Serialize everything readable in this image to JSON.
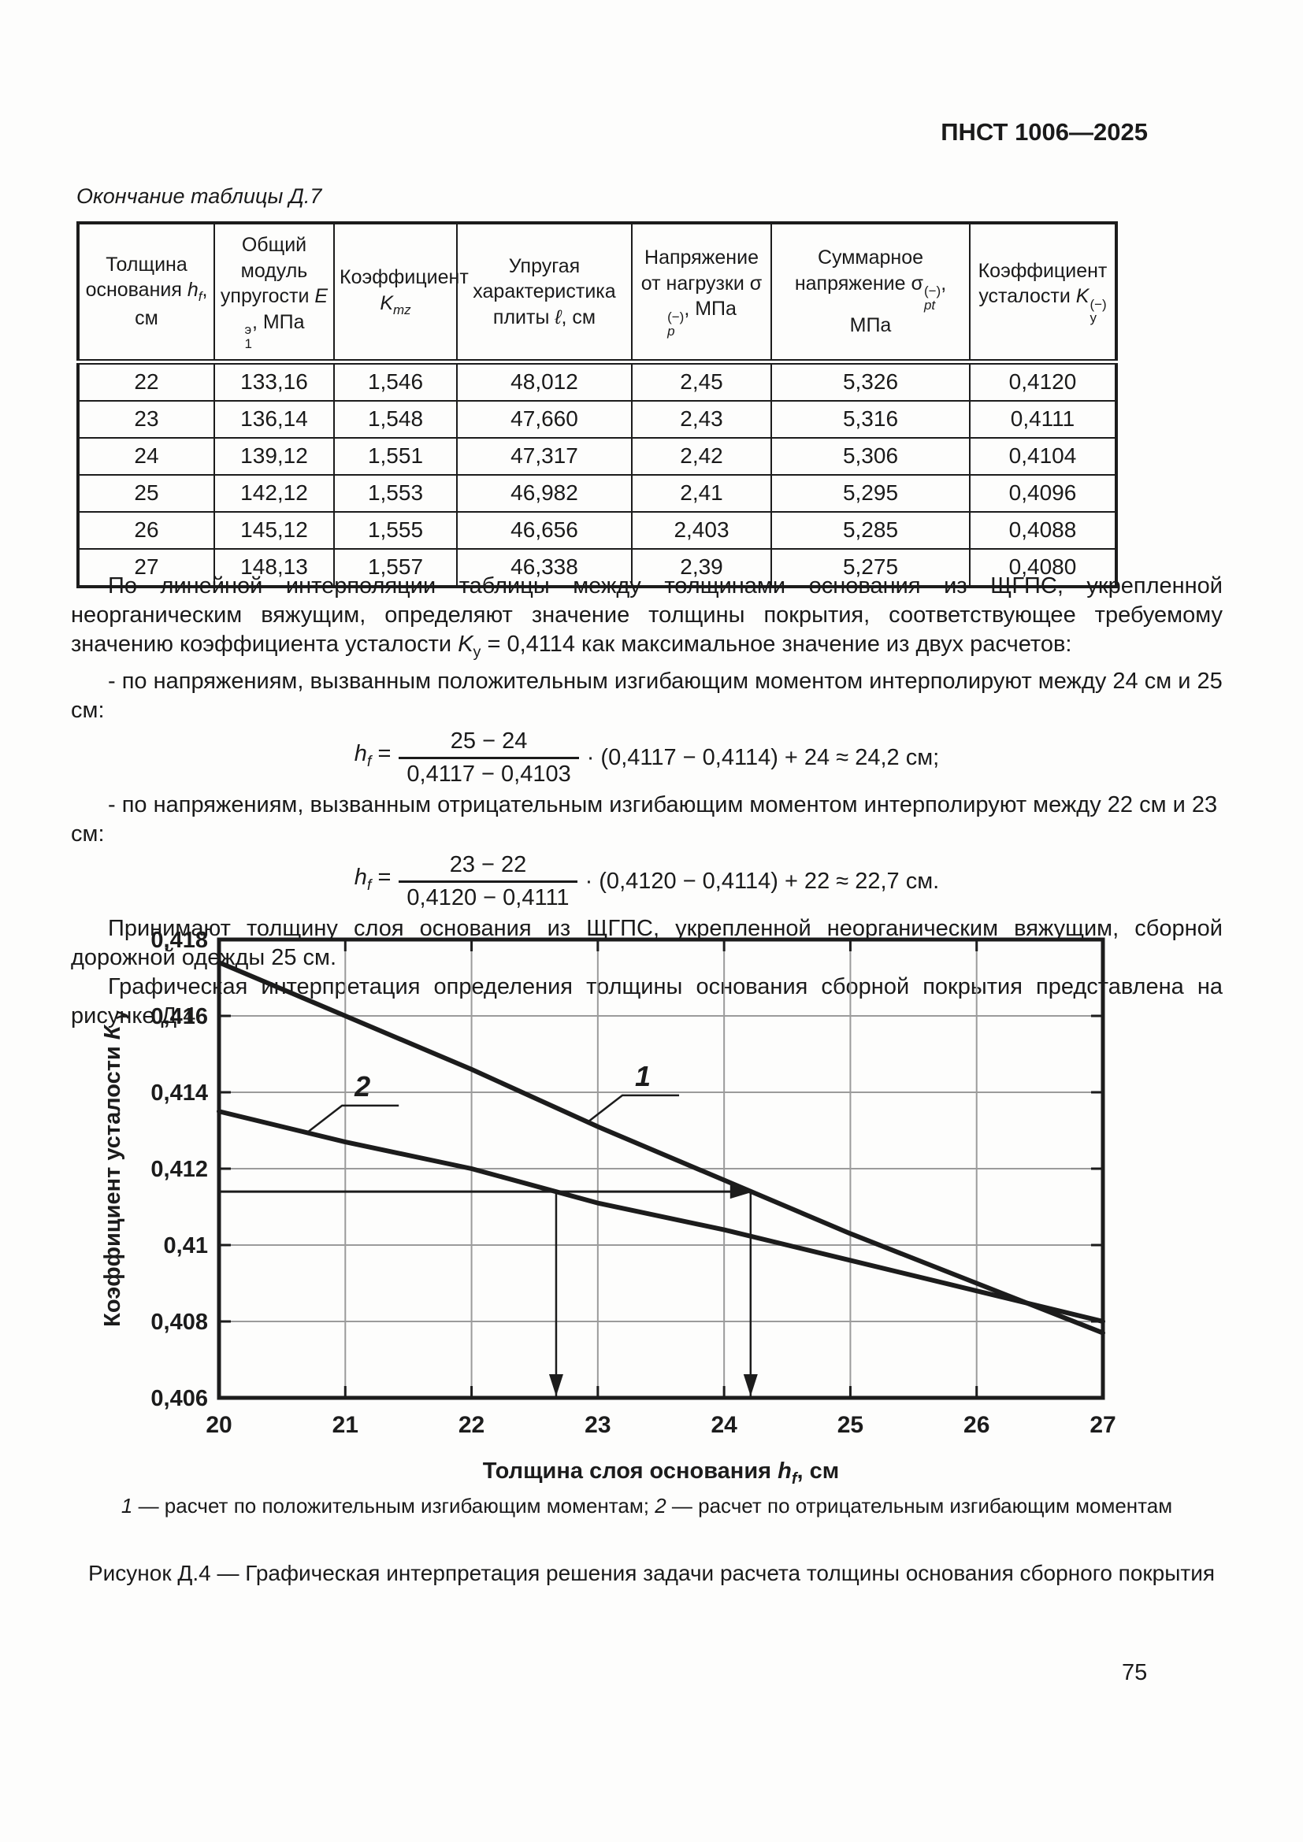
{
  "page": {
    "header": "ПНСТ 1006—2025",
    "table_caption": "Окончание таблицы Д.7",
    "figure_caption": "Рисунок Д.4 — Графическая интерпретация решения задачи расчета толщины основания сборного покрытия",
    "page_number": "75"
  },
  "table": {
    "headers": {
      "h1": {
        "pre": "Толщина основания ",
        "var": "h",
        "sub": "f",
        "post": ", см"
      },
      "h2": {
        "pre": "Общий модуль упругости ",
        "var": "E",
        "sup": "э",
        "sub": "1",
        "post": ", МПа"
      },
      "h3": {
        "pre": "Коэффициент ",
        "var": "K",
        "sub": "mz"
      },
      "h4": {
        "pre": "Упругая характеристика плиты ",
        "var": "ℓ",
        "post": ", см"
      },
      "h5": {
        "pre": "Напряжение от нагрузки ",
        "sym": "σ",
        "sup": "(−)",
        "sub": "p",
        "post": ", МПа"
      },
      "h6": {
        "pre": "Суммарное напряжение ",
        "sym": "σ",
        "sup": "(−)",
        "sub": "pt",
        "post": ", МПа"
      },
      "h7": {
        "pre": "Коэффициент усталости ",
        "var": "K",
        "sup": "(−)",
        "sub": "у"
      }
    },
    "rows": [
      [
        "22",
        "133,16",
        "1,546",
        "48,012",
        "2,45",
        "5,326",
        "0,4120"
      ],
      [
        "23",
        "136,14",
        "1,548",
        "47,660",
        "2,43",
        "5,316",
        "0,4111"
      ],
      [
        "24",
        "139,12",
        "1,551",
        "47,317",
        "2,42",
        "5,306",
        "0,4104"
      ],
      [
        "25",
        "142,12",
        "1,553",
        "46,982",
        "2,41",
        "5,295",
        "0,4096"
      ],
      [
        "26",
        "145,12",
        "1,555",
        "46,656",
        "2,403",
        "5,285",
        "0,4088"
      ],
      [
        "27",
        "148,13",
        "1,557",
        "46,338",
        "2,39",
        "5,275",
        "0,4080"
      ]
    ]
  },
  "text": {
    "p1a": "По линейной интерполяции таблицы между толщинами основания из ЩГПС, укрепленной неорганическим вяжущим, определяют значение толщины покрытия, соответствующее требуемому значению коэффициента усталости ",
    "p1_var": "K",
    "p1_sub": "у",
    "p1b": " = 0,4114 как максимальное значение из двух расчетов:",
    "b1": "- по напряжениям, вызванным положительным изгибающим моментом интерполируют между 24 см и 25 см:",
    "b2": "- по напряжениям, вызванным отрицательным изгибающим моментом интерполируют между 22 см и 23 см:",
    "p2": "Принимают толщину слоя основания из ЩГПС, укрепленной неорганическим вяжущим, сборной дорожной одежды 25 см.",
    "p3": "Графическая интерпретация определения толщины основания сборной покрытия представлена на рисунке Д.4."
  },
  "formulas": [
    {
      "lhs_var": "h",
      "lhs_sub": "f",
      "eq": "=",
      "num": "25 − 24",
      "den": "0,4117 − 0,4103",
      "tail": "· (0,4117 − 0,4114) + 24 ≈ 24,2 см;"
    },
    {
      "lhs_var": "h",
      "lhs_sub": "f",
      "eq": "=",
      "num": "23 − 22",
      "den": "0,4120 − 0,4111",
      "tail": "· (0,4120 − 0,4114) + 22 ≈ 22,7 см."
    }
  ],
  "legend": {
    "n1": "1",
    "t1": " — расчет по положительным изгибающим моментам; ",
    "n2": "2",
    "t2": " — расчет по отрицательным изгибающим моментам"
  },
  "chart_data": {
    "type": "line",
    "x": [
      20,
      21,
      22,
      23,
      24,
      25,
      26,
      27
    ],
    "series": [
      {
        "name": "1",
        "legend": "расчет по положительным изгибающим моментам",
        "values": [
          0.4174,
          0.416,
          0.4146,
          0.4131,
          0.4117,
          0.4103,
          0.409,
          0.4077
        ]
      },
      {
        "name": "2",
        "legend": "расчет по отрицательным изгибающим моментам",
        "values": [
          0.4135,
          0.4127,
          0.412,
          0.4111,
          0.4104,
          0.4096,
          0.4088,
          0.408
        ]
      }
    ],
    "xlabel": {
      "pre": "Толщина слоя основания ",
      "var": "h",
      "sub": "f",
      "post": ", см"
    },
    "ylabel": {
      "pre": "Коэффициент усталости ",
      "var": "К",
      "sub": "у"
    },
    "xlim": [
      20,
      27
    ],
    "ylim": [
      0.406,
      0.418
    ],
    "xticks": [
      20,
      21,
      22,
      23,
      24,
      25,
      26,
      27
    ],
    "xtick_labels": [
      "20",
      "21",
      "22",
      "23",
      "24",
      "25",
      "26",
      "27"
    ],
    "yticks": [
      0.406,
      0.408,
      0.41,
      0.412,
      0.414,
      0.416,
      0.418
    ],
    "ytick_labels": [
      "0,406",
      "0,408",
      "0,41",
      "0,412",
      "0,414",
      "0,416",
      "0,418"
    ],
    "grid": true,
    "guides": {
      "ky_required": 0.4114,
      "x_solutions": [
        22.67,
        24.21
      ]
    },
    "annotations": [
      {
        "text": "1",
        "attach_x": 22.92,
        "attach_y": 0.41322
      },
      {
        "text": "2",
        "attach_x": 20.7,
        "attach_y": 0.41295
      }
    ],
    "colors": {
      "line": "#1c1c1c",
      "grid": "#9b9b9b"
    }
  }
}
